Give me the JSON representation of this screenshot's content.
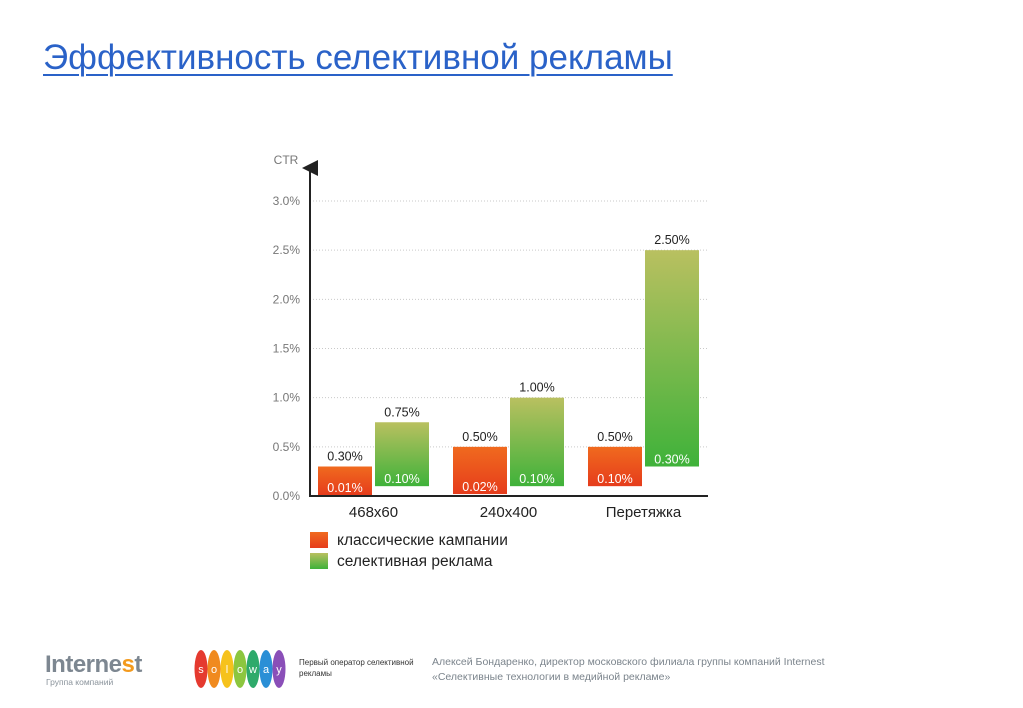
{
  "page": {
    "title": "Эффективность селективной рекламы"
  },
  "chart_data": {
    "type": "bar",
    "ylabel": "CTR",
    "ylim": [
      0,
      3.0
    ],
    "yticks": [
      "0.0%",
      "0.5%",
      "1.0%",
      "1.5%",
      "2.0%",
      "2.5%",
      "3.0%"
    ],
    "grid": true,
    "categories": [
      "468x60",
      "240x400",
      "Перетяжка"
    ],
    "series": [
      {
        "name": "классические кампании",
        "color": "#e8501c",
        "bottom_values": [
          0.01,
          0.02,
          0.1
        ],
        "top_values": [
          0.3,
          0.5,
          0.5
        ],
        "bottom_labels": [
          "0.01%",
          "0.02%",
          "0.10%"
        ],
        "top_labels": [
          "0.30%",
          "0.50%",
          "0.50%"
        ]
      },
      {
        "name": "селективная реклама",
        "color": "#4db23e",
        "bottom_values": [
          0.1,
          0.1,
          0.3
        ],
        "top_values": [
          0.75,
          1.0,
          2.5
        ],
        "bottom_labels": [
          "0.10%",
          "0.10%",
          "0.30%"
        ],
        "top_labels": [
          "0.75%",
          "1.00%",
          "2.50%"
        ]
      }
    ],
    "legend_position": "bottom-left"
  },
  "footer": {
    "internest_brand_main": "Interne",
    "internest_brand_accent": "s",
    "internest_brand_end": "t",
    "internest_sub": "Группа компаний",
    "soloway_letters": [
      "s",
      "o",
      "l",
      "o",
      "w",
      "a",
      "y"
    ],
    "soloway_colors": [
      "#e53a2f",
      "#f08a1f",
      "#f6c21c",
      "#8cc63f",
      "#2eaa6b",
      "#2a8fd6",
      "#8a4fb8"
    ],
    "soloway_tagline": "Первый оператор селективной рекламы",
    "author_line1": "Алексей Бондаренко, директор московского филиала группы компаний Internest",
    "author_line2": "«Селективные технологии в медийной рекламе»"
  }
}
